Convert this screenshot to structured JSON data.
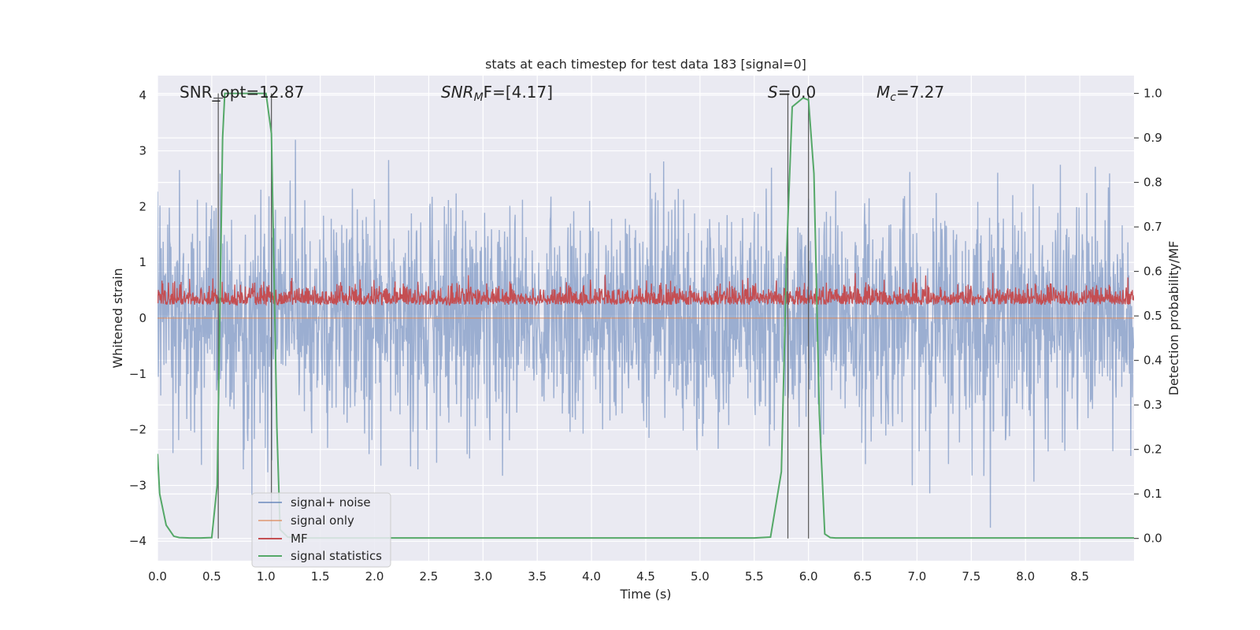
{
  "chart_data": {
    "type": "line",
    "title": "stats at each timestep for test data 183 [signal=0]",
    "xlabel": "Time (s)",
    "ylabel_left": "Whitened strain",
    "ylabel_right": "Detection probability/MF",
    "xlim": [
      0,
      9.0
    ],
    "ylim_left": [
      -4.35,
      4.35
    ],
    "ylim_right": [
      -0.05,
      1.04
    ],
    "xticks": [
      "0.0",
      "0.5",
      "1.0",
      "1.5",
      "2.0",
      "2.5",
      "3.0",
      "3.5",
      "4.0",
      "4.5",
      "5.0",
      "5.5",
      "6.0",
      "6.5",
      "7.0",
      "7.5",
      "8.0",
      "8.5"
    ],
    "yticks_left": [
      "−4",
      "−3",
      "−2",
      "−1",
      "0",
      "1",
      "2",
      "3",
      "4"
    ],
    "yticks_right": [
      "0.0",
      "0.1",
      "0.2",
      "0.3",
      "0.4",
      "0.5",
      "0.6",
      "0.7",
      "0.8",
      "0.9",
      "1.0"
    ],
    "grid": true,
    "legend_position": "lower-left",
    "annotations": {
      "snr_opt": "SNR_opt=12.87",
      "snr_mf_base": "SNR",
      "snr_mf_sub": "M",
      "snr_mf_rest": "F=[4.17]",
      "s_var": "S",
      "s_rest": "=0.0",
      "mc_base": "M",
      "mc_sub": "c",
      "mc_rest": "=7.27"
    },
    "vertical_markers": [
      0.56,
      1.05,
      5.81,
      6.0
    ],
    "series": [
      {
        "name": "signal+ noise",
        "color": "#4c72b0",
        "axis": "left",
        "style": "noise",
        "amplitude_sigma": 1.0,
        "extent": [
          -3.9,
          3.4
        ]
      },
      {
        "name": "signal only",
        "color": "#dd8452",
        "axis": "left",
        "style": "flat",
        "values": [
          0
        ]
      },
      {
        "name": "MF",
        "color": "#c44e52",
        "axis": "right",
        "style": "noise",
        "baseline": 0.535,
        "extent": [
          0.5,
          0.63
        ]
      },
      {
        "name": "signal statistics",
        "color": "#55a868",
        "axis": "right",
        "style": "line",
        "x": [
          0.0,
          0.02,
          0.08,
          0.15,
          0.2,
          0.3,
          0.4,
          0.5,
          0.55,
          0.6,
          0.62,
          0.65,
          0.75,
          0.85,
          0.95,
          1.0,
          1.05,
          1.1,
          1.13,
          1.2,
          1.3,
          1.5,
          2.0,
          3.0,
          4.0,
          5.0,
          5.5,
          5.65,
          5.75,
          5.8,
          5.85,
          5.95,
          6.0,
          6.05,
          6.1,
          6.15,
          6.2,
          6.25,
          6.35,
          7.0,
          8.0,
          9.0
        ],
        "y": [
          0.19,
          0.1,
          0.03,
          0.005,
          0.002,
          0.001,
          0.001,
          0.002,
          0.12,
          0.9,
          1.0,
          1.0,
          1.0,
          1.0,
          1.0,
          1.0,
          0.91,
          0.25,
          0.02,
          0.003,
          0.001,
          0.001,
          0.001,
          0.001,
          0.001,
          0.001,
          0.001,
          0.003,
          0.15,
          0.65,
          0.97,
          0.99,
          0.985,
          0.82,
          0.28,
          0.01,
          0.002,
          0.001,
          0.001,
          0.001,
          0.001,
          0.001
        ]
      }
    ]
  }
}
